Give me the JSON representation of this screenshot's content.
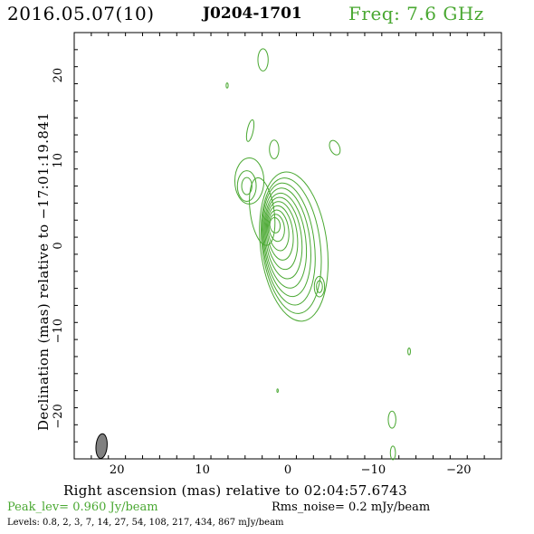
{
  "header": {
    "epoch": "2016.05.07(10)",
    "source": "J0204-1701",
    "freq": "Freq: 7.6 GHz"
  },
  "axes": {
    "ylabel": "Declination (mas) relative to −17:01:19.841",
    "xlabel": "Right ascension (mas) relative to 02:04:57.6743"
  },
  "footer": {
    "peak": "Peak_lev=  0.960 Jy/beam",
    "rms": "Rms_noise=  0.2 mJy/beam",
    "levels": "Levels: 0.8,   2,   3,   7,   14,   27,   54,  108,  217,  434,  867 mJy/beam"
  },
  "colors": {
    "contour": "#4aa832",
    "beam": "#808080",
    "axis": "#000000"
  },
  "chart_data": {
    "type": "contour",
    "title": "2016.05.07(10) J0204-1701",
    "xlabel": "Right ascension (mas) relative to 02:04:57.6743",
    "ylabel": "Declination (mas) relative to −17:01:19.841",
    "xlim": [
      25,
      -25
    ],
    "ylim": [
      -25,
      25
    ],
    "x_ticks": [
      20,
      10,
      0,
      -10,
      -20
    ],
    "x_tick_labels": [
      "20",
      "10",
      "0",
      "−10",
      "−20"
    ],
    "y_ticks": [
      20,
      10,
      0,
      -10,
      -20
    ],
    "y_tick_labels": [
      "20",
      "10",
      "0",
      "−10",
      "−20"
    ],
    "grid": false,
    "levels_mJy": [
      0.8,
      2,
      3,
      7,
      14,
      27,
      54,
      108,
      217,
      434,
      867
    ],
    "peak_Jy_per_beam": 0.96,
    "rms_noise_mJy_per_beam": 0.2,
    "beam": {
      "x": 21.8,
      "y": -23.5,
      "major": 2.9,
      "minor": 1.3,
      "pa": 5
    },
    "core": {
      "center": [
        0,
        0.2
      ],
      "rings": [
        {
          "dx": 1.5,
          "dy": 2.2,
          "rx": 0.6,
          "ry": 0.9
        },
        {
          "dx": 1.3,
          "dy": 1.9,
          "rx": 0.9,
          "ry": 1.6
        },
        {
          "dx": 1.1,
          "dy": 1.6,
          "rx": 1.2,
          "ry": 2.4
        },
        {
          "dx": 0.9,
          "dy": 1.3,
          "rx": 1.5,
          "ry": 3.2
        },
        {
          "dx": 0.7,
          "dy": 1.0,
          "rx": 1.8,
          "ry": 4.0
        },
        {
          "dx": 0.5,
          "dy": 0.7,
          "rx": 2.1,
          "ry": 4.8
        },
        {
          "dx": 0.3,
          "dy": 0.4,
          "rx": 2.4,
          "ry": 5.6
        },
        {
          "dx": 0.1,
          "dy": 0.2,
          "rx": 2.7,
          "ry": 6.4
        },
        {
          "dx": -0.1,
          "dy": 0.0,
          "rx": 3.0,
          "ry": 7.2
        },
        {
          "dx": -0.4,
          "dy": -0.2,
          "rx": 3.4,
          "ry": 8.0
        },
        {
          "dx": -0.7,
          "dy": -0.3,
          "rx": 3.9,
          "ry": 8.8
        }
      ]
    },
    "components": [
      {
        "x": 4.8,
        "y": 7.0,
        "rx": 0.6,
        "ry": 1.0,
        "rot": 0
      },
      {
        "x": 4.8,
        "y": 7.0,
        "rx": 1.1,
        "ry": 1.8,
        "rot": 0
      },
      {
        "x": 4.5,
        "y": 7.6,
        "rx": 1.7,
        "ry": 2.7,
        "rot": 0
      },
      {
        "x": 3.0,
        "y": 4.0,
        "rx": 1.4,
        "ry": 4.0,
        "rot": -8
      },
      {
        "x": -3.7,
        "y": -4.8,
        "rx": 0.35,
        "ry": 0.7,
        "rot": 0
      },
      {
        "x": -3.7,
        "y": -4.8,
        "rx": 0.6,
        "ry": 1.2,
        "rot": 0
      },
      {
        "x": 2.9,
        "y": 21.8,
        "rx": 0.6,
        "ry": 1.3,
        "rot": 0
      },
      {
        "x": 7.1,
        "y": 18.8,
        "rx": 0.12,
        "ry": 0.3,
        "rot": 0
      },
      {
        "x": 4.4,
        "y": 13.5,
        "rx": 0.35,
        "ry": 1.3,
        "rot": 12
      },
      {
        "x": 1.6,
        "y": 11.3,
        "rx": 0.55,
        "ry": 1.1,
        "rot": 0
      },
      {
        "x": -5.5,
        "y": 11.5,
        "rx": 0.55,
        "ry": 0.9,
        "rot": -25
      },
      {
        "x": -14.2,
        "y": -12.4,
        "rx": 0.15,
        "ry": 0.4,
        "rot": 0
      },
      {
        "x": -12.2,
        "y": -20.4,
        "rx": 0.45,
        "ry": 1.0,
        "rot": 0
      },
      {
        "x": -12.3,
        "y": -24.3,
        "rx": 0.3,
        "ry": 0.8,
        "rot": 0
      },
      {
        "x": 1.2,
        "y": -17.0,
        "rx": 0.08,
        "ry": 0.2,
        "rot": 0
      }
    ]
  }
}
